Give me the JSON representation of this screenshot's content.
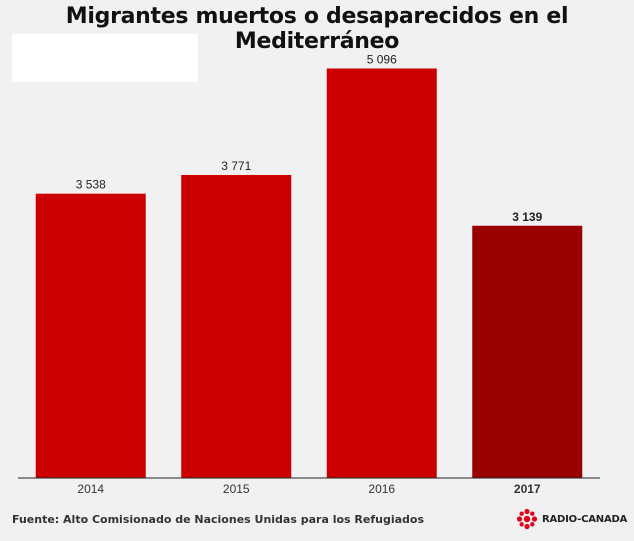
{
  "title": "Migrantes muertos o desaparecidos en el Mediterráneo",
  "source": "Fuente: Alto Comisionado de Naciones Unidas para los Refugiados",
  "logo": {
    "text": "RADIO-CANADA",
    "icon": "radio-canada-gem-icon",
    "color": "#e3001b"
  },
  "chart_data": {
    "type": "bar",
    "categories": [
      "2014",
      "2015",
      "2016",
      "2017"
    ],
    "values": [
      3538,
      3771,
      5096,
      3139
    ],
    "value_labels": [
      "3 538",
      "3 771",
      "5 096",
      "3 139"
    ],
    "highlight": "2017",
    "colors": {
      "bar": "#cc0000",
      "highlight": "#990000"
    },
    "xlabel": "",
    "ylabel": "",
    "ylim": [
      0,
      5600
    ],
    "grid": false
  }
}
